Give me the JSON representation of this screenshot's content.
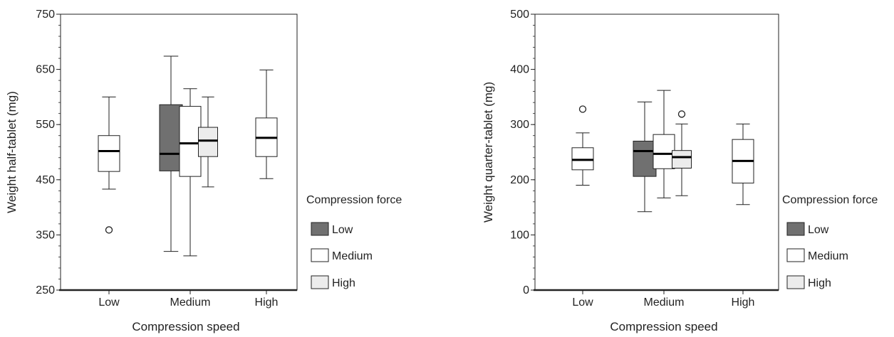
{
  "colors": {
    "Low": "#707070",
    "Medium": "#ffffff",
    "High": "#ececec",
    "stroke": "#222222"
  },
  "chart_data": [
    {
      "type": "box",
      "xlabel": "Compression speed",
      "ylabel": "Weight half-tablet (mg)",
      "ylim": [
        250,
        750
      ],
      "yticks": [
        250,
        350,
        450,
        550,
        650,
        750
      ],
      "categories": [
        "Low",
        "Medium",
        "High"
      ],
      "legend": {
        "title": "Compression force",
        "entries": [
          "Low",
          "Medium",
          "High"
        ],
        "placement": "right"
      },
      "boxes": [
        {
          "speed": "Low",
          "force": "Medium",
          "min": 433,
          "q1": 465,
          "median": 502,
          "q3": 530,
          "max": 600,
          "outliers": [
            359
          ]
        },
        {
          "speed": "Medium",
          "force": "Low",
          "min": 320,
          "q1": 466,
          "median": 497,
          "q3": 586,
          "max": 674,
          "outliers": []
        },
        {
          "speed": "Medium",
          "force": "Medium",
          "min": 312,
          "q1": 456,
          "median": 516,
          "q3": 583,
          "max": 615,
          "outliers": []
        },
        {
          "speed": "Medium",
          "force": "High",
          "min": 437,
          "q1": 492,
          "median": 521,
          "q3": 545,
          "max": 600,
          "outliers": []
        },
        {
          "speed": "High",
          "force": "Medium",
          "min": 452,
          "q1": 492,
          "median": 526,
          "q3": 562,
          "max": 649,
          "outliers": []
        }
      ]
    },
    {
      "type": "box",
      "xlabel": "Compression speed",
      "ylabel": "Weight quarter-tablet (mg)",
      "ylim": [
        0,
        500
      ],
      "yticks": [
        0,
        100,
        200,
        300,
        400,
        500
      ],
      "categories": [
        "Low",
        "Medium",
        "High"
      ],
      "legend": {
        "title": "Compression force",
        "entries": [
          "Low",
          "Medium",
          "High"
        ],
        "placement": "right"
      },
      "boxes": [
        {
          "speed": "Low",
          "force": "Medium",
          "min": 190,
          "q1": 218,
          "median": 236,
          "q3": 258,
          "max": 285,
          "outliers": [
            328
          ]
        },
        {
          "speed": "Medium",
          "force": "Low",
          "min": 142,
          "q1": 206,
          "median": 252,
          "q3": 270,
          "max": 341,
          "outliers": []
        },
        {
          "speed": "Medium",
          "force": "Medium",
          "min": 167,
          "q1": 220,
          "median": 247,
          "q3": 282,
          "max": 362,
          "outliers": []
        },
        {
          "speed": "Medium",
          "force": "High",
          "min": 171,
          "q1": 221,
          "median": 241,
          "q3": 253,
          "max": 301,
          "outliers": [
            319
          ]
        },
        {
          "speed": "High",
          "force": "Medium",
          "min": 155,
          "q1": 194,
          "median": 234,
          "q3": 273,
          "max": 301,
          "outliers": []
        }
      ]
    }
  ]
}
